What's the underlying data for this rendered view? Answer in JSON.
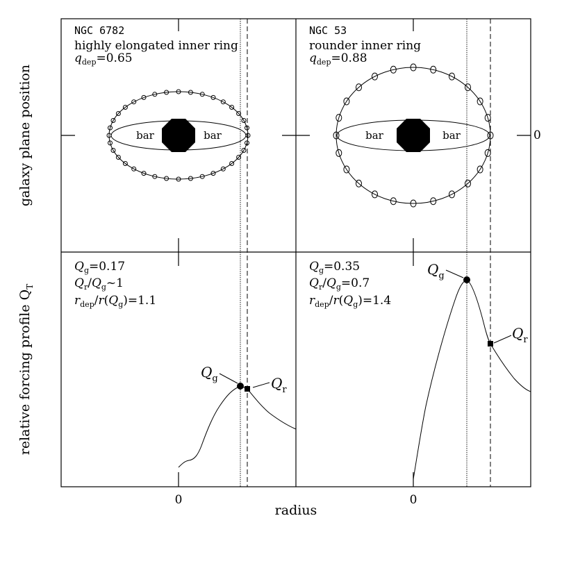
{
  "axes": {
    "xlabel": "radius",
    "ylabel": "galaxy plane position",
    "ylabel_lower": "relative forcing profile Q",
    "ylabel_lower_sub": "T",
    "x_zero": "0",
    "y_zero_right": "0"
  },
  "panels": [
    {
      "galaxy": "NGC 6782",
      "description": "highly elongated inner ring",
      "qdep_symbol": "q",
      "qdep_sub": "dep",
      "qdep_value": "=0.65",
      "bar_left": "bar",
      "bar_right": "bar",
      "ring_q": 0.65,
      "stats": {
        "qg": "=0.17",
        "qr_qg": "~1",
        "rdep_ratio": "=1.1"
      },
      "marker_qg": "Q",
      "marker_qg_sub": "g",
      "marker_qr": "Q",
      "marker_qr_sub": "r"
    },
    {
      "galaxy": "NGC 53",
      "description": "rounder inner ring",
      "qdep_symbol": "q",
      "qdep_sub": "dep",
      "qdep_value": "=0.88",
      "bar_left": "bar",
      "bar_right": "bar",
      "ring_q": 0.88,
      "stats": {
        "qg": "=0.35",
        "qr_qg": "=0.7",
        "rdep_ratio": "=1.4"
      },
      "marker_qg": "Q",
      "marker_qg_sub": "g",
      "marker_qr": "Q",
      "marker_qr_sub": "r"
    }
  ]
}
